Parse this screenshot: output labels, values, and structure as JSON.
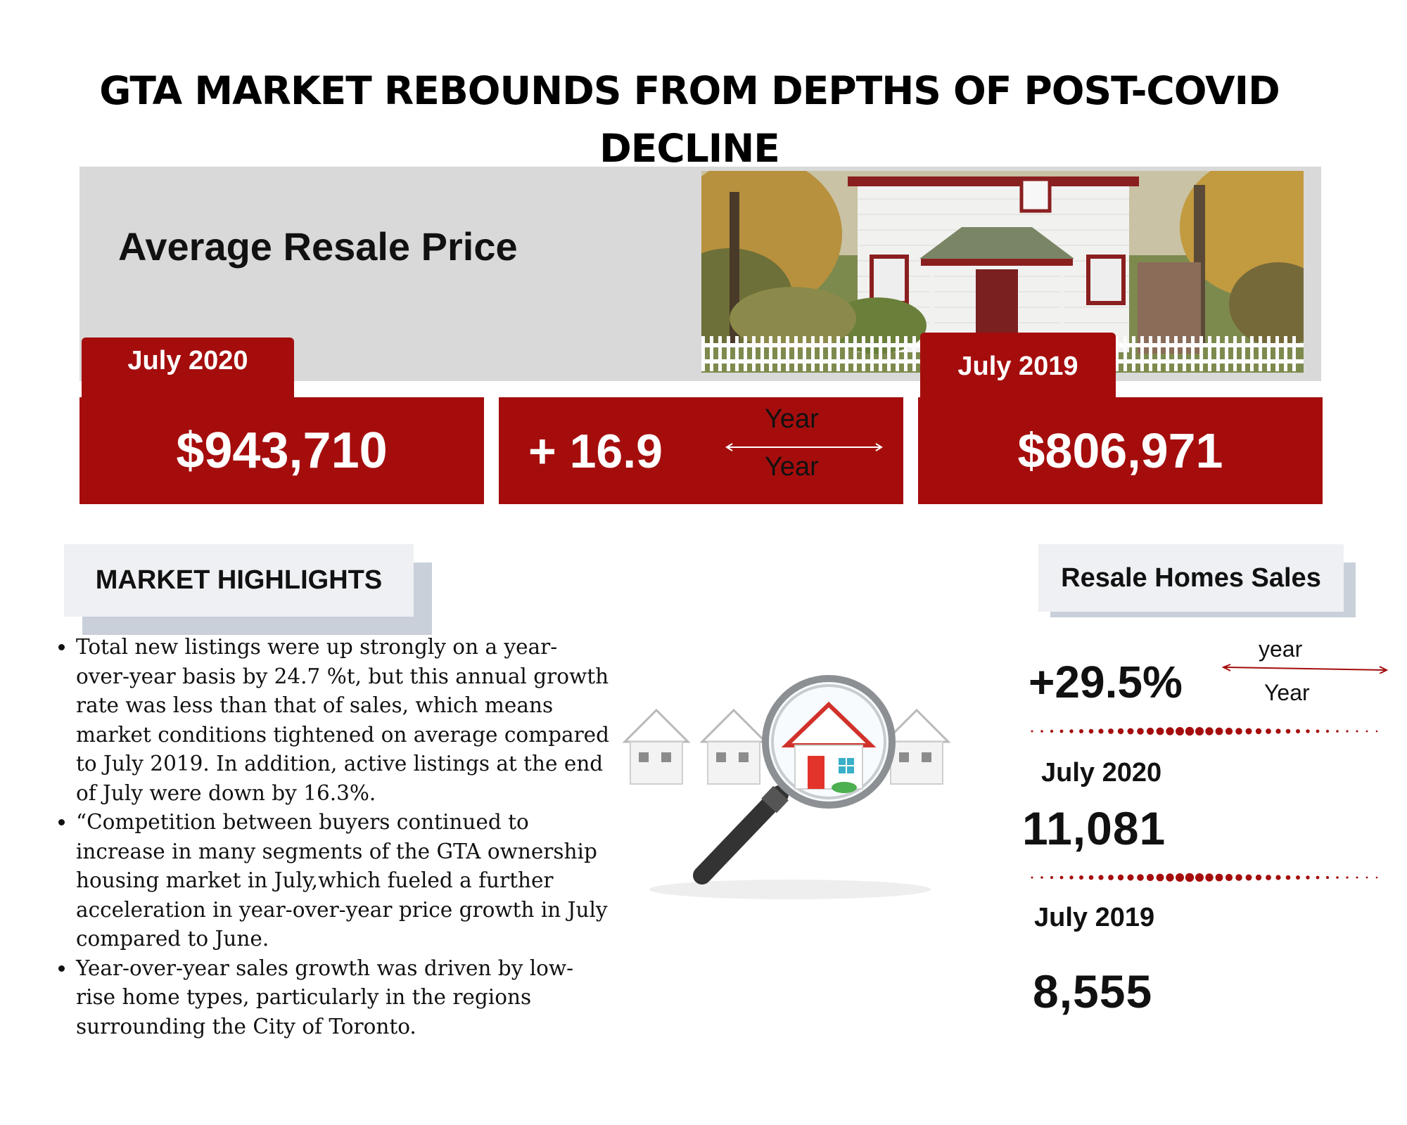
{
  "title": "GTA MARKET REBOUNDS FROM DEPTHS OF POST-COVID DECLINE",
  "price_section": {
    "heading": "Average Resale Price",
    "current_tab": "July 2020",
    "current_value": "$943,710",
    "change_value": "+ 16.9",
    "change_label_top": "Year",
    "change_label_bottom": "Year",
    "previous_tab": "July 2019",
    "previous_value": "$806,971"
  },
  "highlights": {
    "heading": "MARKET HIGHLIGHTS",
    "items": [
      "Total new listings were up strongly on a year-over-year basis by 24.7 %t, but this annual growth rate was less than that of sales, which means market conditions tightened on average compared to July 2019. In addition, active listings at the end of July were down by 16.3%.",
      "“Competition between buyers continued to increase in many segments of the GTA ownership housing market in July,which fueled a further acceleration in year-over-year price growth in July compared to June.",
      "Year-over-year sales growth was driven by low-rise home types, particularly in the regions surrounding the City of Toronto."
    ]
  },
  "sales": {
    "heading": "Resale Homes Sales",
    "change_value": "+29.5%",
    "change_label_top": "year",
    "change_label_bottom": "Year",
    "current_label": "July 2020",
    "current_value": "11,081",
    "previous_label": "July 2019",
    "previous_value": "8,555"
  },
  "colors": {
    "accent_red": "#a50d0d",
    "panel_grey": "#d9d9d9",
    "label_bg": "#eef0f3",
    "label_shadow": "#c9d0d9"
  }
}
